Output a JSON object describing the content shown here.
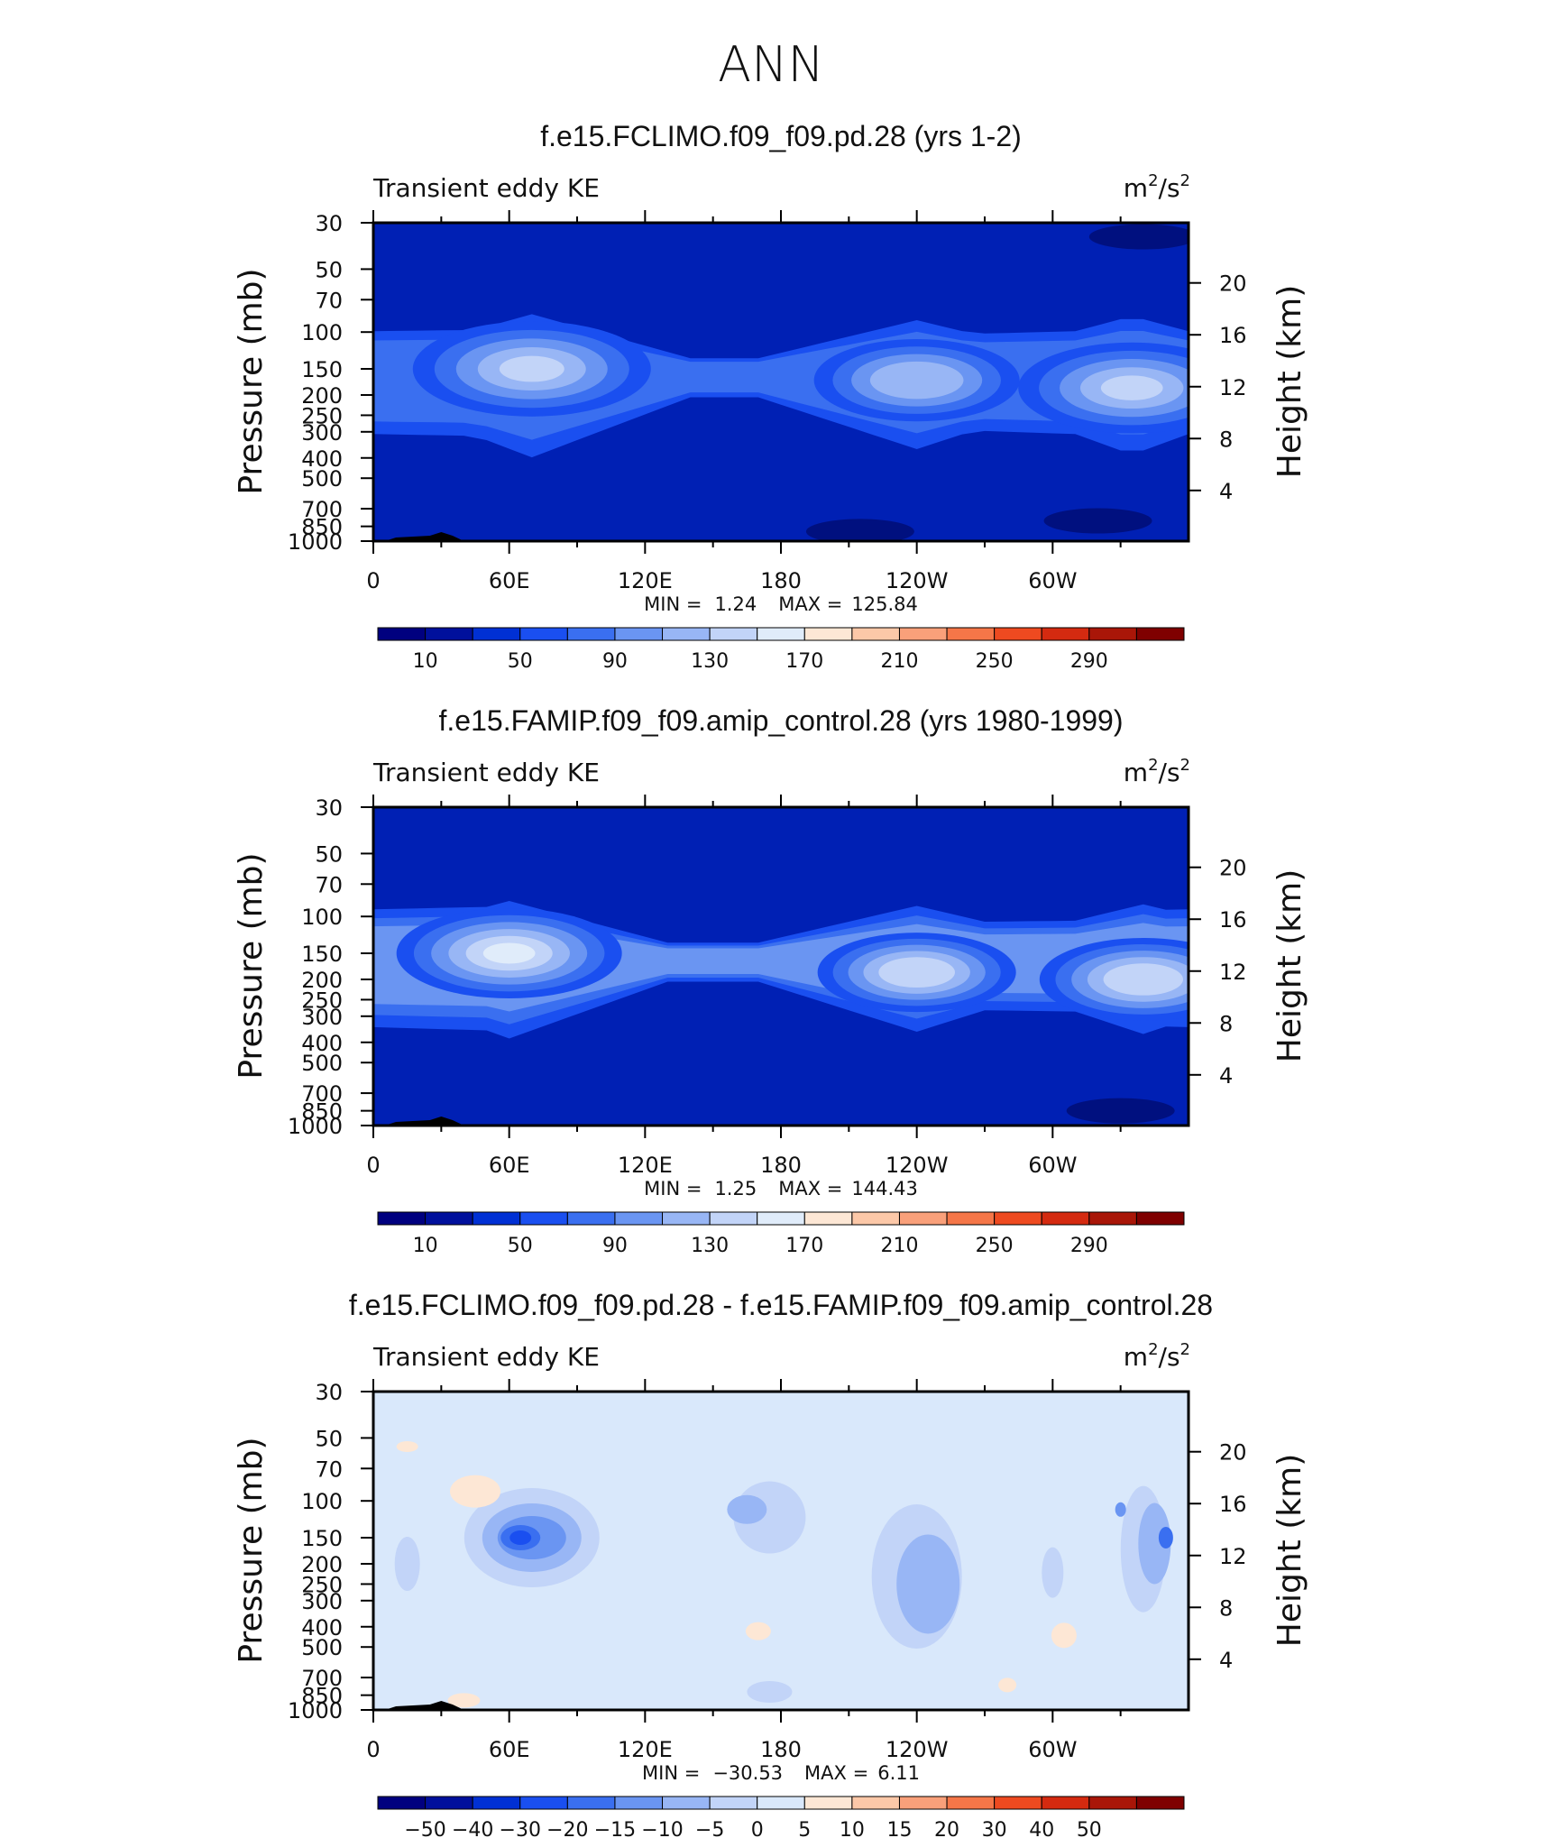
{
  "figure": {
    "title": "ANN"
  },
  "chart_data": [
    {
      "type": "heatmap",
      "title": "f.e15.FCLIMO.f09_f09.pd.28 (yrs 1-2)",
      "variable": "Transient eddy KE",
      "units_base": "m",
      "units_exp1": "2",
      "units_sep": "/s",
      "units_exp2": "2",
      "ylabel": "Pressure (mb)",
      "y2label": "Height (km)",
      "xticks": [
        "0",
        "60E",
        "120E",
        "180",
        "120W",
        "60W"
      ],
      "yticks": [
        30,
        50,
        70,
        100,
        150,
        200,
        250,
        300,
        400,
        500,
        700,
        850,
        1000
      ],
      "y2ticks": [
        20,
        16,
        12,
        8,
        4
      ],
      "stats": {
        "min_label": "MIN =",
        "min": "1.24",
        "max_label": "MAX =",
        "max": "125.84"
      },
      "colorbar": {
        "colors": [
          "#00007f",
          "#00109c",
          "#0030d4",
          "#1a4ff0",
          "#3a6ff0",
          "#6a95f2",
          "#98b6f5",
          "#c2d4f8",
          "#e0ecfa",
          "#fde7d5",
          "#fcc8a8",
          "#f9a07a",
          "#f57648",
          "#ee4a20",
          "#d42a10",
          "#a91608",
          "#7f0000"
        ],
        "labels": [
          "10",
          "50",
          "90",
          "130",
          "170",
          "210",
          "250",
          "290"
        ],
        "label_after_box": [
          0,
          2,
          4,
          6,
          8,
          10,
          12,
          14
        ]
      },
      "field": {
        "background": "#0020b4",
        "stratosphere": "#0020b4",
        "bands": [
          {
            "color": "#1a4ff0",
            "level": 20
          },
          {
            "color": "#3a6ff0",
            "level": 40
          },
          {
            "color": "#6a95f2",
            "level": 60
          },
          {
            "color": "#98b6f5",
            "level": 80
          },
          {
            "color": "#c2d4f8",
            "level": 100
          }
        ],
        "jets": [
          {
            "lon": 70,
            "p": 150,
            "peak": 110
          },
          {
            "lon": 240,
            "p": 170,
            "peak": 95
          },
          {
            "lon": 335,
            "p": 185,
            "peak": 105
          }
        ],
        "low_patches": [
          {
            "lon": 215,
            "p": 900,
            "color": "#00107f"
          },
          {
            "lon": 320,
            "p": 800,
            "color": "#00107f"
          },
          {
            "lon": 340,
            "p": 35,
            "color": "#00107f"
          }
        ]
      }
    },
    {
      "type": "heatmap",
      "title": "f.e15.FAMIP.f09_f09.amip_control.28 (yrs 1980-1999)",
      "variable": "Transient eddy KE",
      "units_base": "m",
      "units_exp1": "2",
      "units_sep": "/s",
      "units_exp2": "2",
      "ylabel": "Pressure (mb)",
      "y2label": "Height (km)",
      "xticks": [
        "0",
        "60E",
        "120E",
        "180",
        "120W",
        "60W"
      ],
      "yticks": [
        30,
        50,
        70,
        100,
        150,
        200,
        250,
        300,
        400,
        500,
        700,
        850,
        1000
      ],
      "y2ticks": [
        20,
        16,
        12,
        8,
        4
      ],
      "stats": {
        "min_label": "MIN =",
        "min": "1.25",
        "max_label": "MAX =",
        "max": "144.43"
      },
      "colorbar": {
        "colors": [
          "#00007f",
          "#00109c",
          "#0030d4",
          "#1a4ff0",
          "#3a6ff0",
          "#6a95f2",
          "#98b6f5",
          "#c2d4f8",
          "#e0ecfa",
          "#fde7d5",
          "#fcc8a8",
          "#f9a07a",
          "#f57648",
          "#ee4a20",
          "#d42a10",
          "#a91608",
          "#7f0000"
        ],
        "labels": [
          "10",
          "50",
          "90",
          "130",
          "170",
          "210",
          "250",
          "290"
        ],
        "label_after_box": [
          0,
          2,
          4,
          6,
          8,
          10,
          12,
          14
        ]
      },
      "field": {
        "background": "#0020b4",
        "stratosphere": "#0020b4",
        "bands": [
          {
            "color": "#1a4ff0",
            "level": 20
          },
          {
            "color": "#3a6ff0",
            "level": 40
          },
          {
            "color": "#6a95f2",
            "level": 60
          },
          {
            "color": "#98b6f5",
            "level": 80
          },
          {
            "color": "#c2d4f8",
            "level": 100
          },
          {
            "color": "#e0ecfa",
            "level": 120
          }
        ],
        "jets": [
          {
            "lon": 60,
            "p": 150,
            "peak": 125
          },
          {
            "lon": 240,
            "p": 185,
            "peak": 110
          },
          {
            "lon": 340,
            "p": 200,
            "peak": 115
          }
        ],
        "low_patches": [
          {
            "lon": 330,
            "p": 850,
            "color": "#00107f"
          }
        ]
      }
    },
    {
      "type": "heatmap",
      "title": "f.e15.FCLIMO.f09_f09.pd.28 - f.e15.FAMIP.f09_f09.amip_control.28",
      "variable": "Transient eddy KE",
      "units_base": "m",
      "units_exp1": "2",
      "units_sep": "/s",
      "units_exp2": "2",
      "ylabel": "Pressure (mb)",
      "y2label": "Height (km)",
      "xticks": [
        "0",
        "60E",
        "120E",
        "180",
        "120W",
        "60W"
      ],
      "yticks": [
        30,
        50,
        70,
        100,
        150,
        200,
        250,
        300,
        400,
        500,
        700,
        850,
        1000
      ],
      "y2ticks": [
        20,
        16,
        12,
        8,
        4
      ],
      "stats": {
        "min_label": "MIN =",
        "min": "−30.53",
        "max_label": "MAX =",
        "max": "6.11"
      },
      "colorbar": {
        "colors": [
          "#00007f",
          "#00109c",
          "#0030d4",
          "#1a4ff0",
          "#3a6ff0",
          "#6a95f2",
          "#98b6f5",
          "#c2d4f8",
          "#d9e8fb",
          "#fde7d5",
          "#fcc8a8",
          "#f9a07a",
          "#f57648",
          "#ee4a20",
          "#d42a10",
          "#a91608",
          "#7f0000"
        ],
        "labels": [
          "−50",
          "−40",
          "−30",
          "−20",
          "−15",
          "−10",
          "−5",
          "0",
          "5",
          "10",
          "15",
          "20",
          "30",
          "40",
          "50"
        ],
        "label_after_box": [
          0,
          1,
          2,
          3,
          4,
          5,
          6,
          7,
          8,
          9,
          10,
          11,
          12,
          13,
          14
        ]
      },
      "field": {
        "background": "#d9e8fb",
        "stratosphere": "#d9e8fb",
        "bands": [],
        "diff_patches": [
          {
            "lon": 70,
            "p": 150,
            "color": "#c2d4f8",
            "rx": 75,
            "ry": 55
          },
          {
            "lon": 70,
            "p": 150,
            "color": "#98b6f5",
            "rx": 55,
            "ry": 38
          },
          {
            "lon": 70,
            "p": 150,
            "color": "#6a95f2",
            "rx": 38,
            "ry": 24
          },
          {
            "lon": 65,
            "p": 150,
            "color": "#3a6ff0",
            "rx": 22,
            "ry": 14
          },
          {
            "lon": 65,
            "p": 150,
            "color": "#1a4ff0",
            "rx": 12,
            "ry": 8
          },
          {
            "lon": 175,
            "p": 120,
            "color": "#c2d4f8",
            "rx": 40,
            "ry": 40
          },
          {
            "lon": 165,
            "p": 110,
            "color": "#98b6f5",
            "rx": 22,
            "ry": 16
          },
          {
            "lon": 240,
            "p": 230,
            "color": "#c2d4f8",
            "rx": 50,
            "ry": 80
          },
          {
            "lon": 245,
            "p": 250,
            "color": "#98b6f5",
            "rx": 35,
            "ry": 55
          },
          {
            "lon": 340,
            "p": 170,
            "color": "#c2d4f8",
            "rx": 25,
            "ry": 70
          },
          {
            "lon": 345,
            "p": 160,
            "color": "#98b6f5",
            "rx": 18,
            "ry": 45
          },
          {
            "lon": 350,
            "p": 150,
            "color": "#3a6ff0",
            "rx": 8,
            "ry": 12
          },
          {
            "lon": 330,
            "p": 110,
            "color": "#6a95f2",
            "rx": 6,
            "ry": 8
          },
          {
            "lon": 15,
            "p": 200,
            "color": "#c2d4f8",
            "rx": 14,
            "ry": 30
          },
          {
            "lon": 300,
            "p": 220,
            "color": "#c2d4f8",
            "rx": 12,
            "ry": 28
          },
          {
            "lon": 175,
            "p": 820,
            "color": "#c2d4f8",
            "rx": 25,
            "ry": 12
          }
        ],
        "pos_patches": [
          {
            "lon": 45,
            "p": 90,
            "color": "#fde7d5",
            "rx": 28,
            "ry": 18
          },
          {
            "lon": 15,
            "p": 55,
            "color": "#fde7d5",
            "rx": 12,
            "ry": 6
          },
          {
            "lon": 305,
            "p": 440,
            "color": "#fde7d5",
            "rx": 14,
            "ry": 14
          },
          {
            "lon": 170,
            "p": 420,
            "color": "#fde7d5",
            "rx": 14,
            "ry": 10
          },
          {
            "lon": 280,
            "p": 760,
            "color": "#fde7d5",
            "rx": 10,
            "ry": 8
          },
          {
            "lon": 40,
            "p": 900,
            "color": "#fde7d5",
            "rx": 18,
            "ry": 8
          }
        ]
      }
    }
  ]
}
